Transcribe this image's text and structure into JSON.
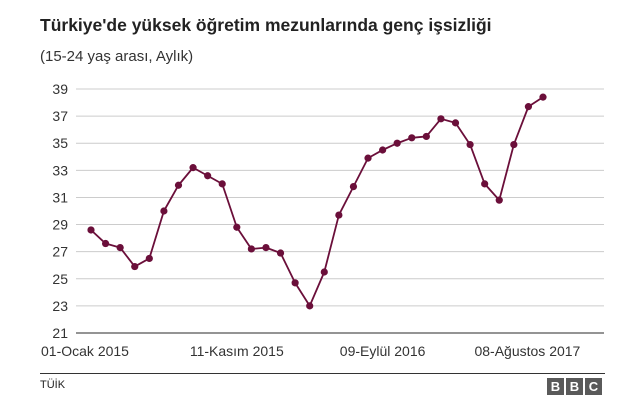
{
  "header": {
    "title": "Türkiye'de yüksek öğretim mezunlarında genç işsizliği",
    "subtitle": "(15-24 yaş arası, Aylık)"
  },
  "footer": {
    "source": "TÜİK",
    "brand_letters": [
      "B",
      "B",
      "C"
    ]
  },
  "chart_data": {
    "type": "line",
    "title": "Türkiye'de yüksek öğretim mezunlarında genç işsizliği",
    "subtitle": "(15-24 yaş arası, Aylık)",
    "xlabel": "",
    "ylabel": "",
    "x_tick_labels": [
      "01-Ocak 2015",
      "11-Kasım 2015",
      "09-Eylül 2016",
      "08-Ağustos 2017"
    ],
    "x_tick_indices": [
      0,
      10,
      20,
      30
    ],
    "y_ticks": [
      21,
      23,
      25,
      27,
      29,
      31,
      33,
      35,
      37,
      39
    ],
    "ylim": [
      21,
      39.8
    ],
    "grid": true,
    "line_color": "#6b0f3a",
    "series": [
      {
        "values": [
          28.6,
          27.6,
          27.3,
          25.9,
          26.5,
          30.0,
          31.9,
          33.2,
          32.6,
          32.0,
          28.8,
          27.2,
          27.3,
          26.9,
          24.7,
          23.0,
          25.5,
          29.7,
          31.8,
          33.9,
          34.5,
          35.0,
          35.4,
          35.5,
          36.8,
          36.5,
          34.9,
          32.0,
          30.8,
          34.9,
          37.7,
          38.4
        ]
      }
    ]
  }
}
